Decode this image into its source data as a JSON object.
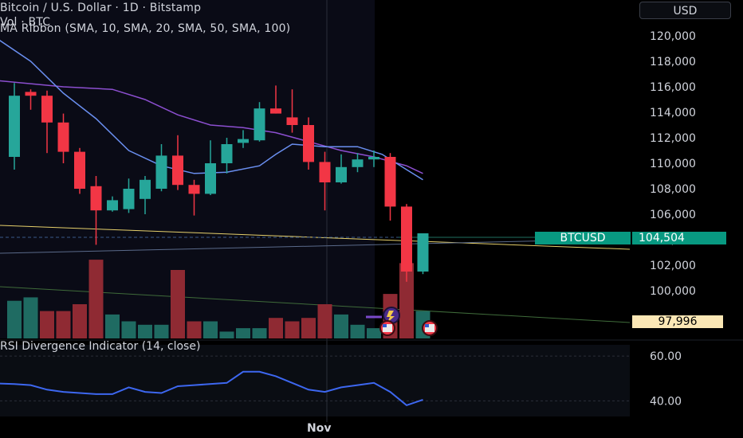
{
  "header": {
    "title": "Bitcoin / U.S. Dollar · 1D · Bitstamp",
    "volume_label": "Vol · BTC",
    "ma_ribbon_label": "MA Ribbon (SMA, 10, SMA, 20, SMA, 50, SMA, 100)"
  },
  "currency_button": {
    "label": "USD"
  },
  "price_scale": {
    "ticks": [
      "120,000",
      "118,000",
      "116,000",
      "114,000",
      "112,000",
      "110,000",
      "108,000",
      "106,000",
      "104,000",
      "102,000",
      "100,000"
    ]
  },
  "tags": {
    "symbol": "BTCUSD",
    "last_price": "104,504",
    "ma_value": "97,996"
  },
  "rsi": {
    "title": "RSI Divergence Indicator (14, close)",
    "ticks": [
      "60.00",
      "40.00"
    ]
  },
  "time_axis": {
    "label": "Nov"
  },
  "colors": {
    "up": "#26a69a",
    "down": "#f23645",
    "ma_fast": "#6a8ff0",
    "ma_slow": "#8c4fd0",
    "rsi": "#3d67f0",
    "trend": "#e6d06b"
  },
  "chart_data": {
    "type": "candlestick",
    "title": "Bitcoin / U.S. Dollar · 1D · Bitstamp",
    "y_price_range": [
      99000,
      121500
    ],
    "candles": [
      {
        "o": 110500,
        "h": 116300,
        "l": 109500,
        "c": 115300
      },
      {
        "o": 115600,
        "h": 115800,
        "l": 114200,
        "c": 115300
      },
      {
        "o": 115300,
        "h": 115700,
        "l": 110800,
        "c": 113200
      },
      {
        "o": 113200,
        "h": 113900,
        "l": 110000,
        "c": 110900
      },
      {
        "o": 110900,
        "h": 111200,
        "l": 107600,
        "c": 108000
      },
      {
        "o": 108200,
        "h": 109000,
        "l": 103600,
        "c": 106300
      },
      {
        "o": 106300,
        "h": 107400,
        "l": 106200,
        "c": 107100
      },
      {
        "o": 106400,
        "h": 108800,
        "l": 106100,
        "c": 108000
      },
      {
        "o": 107200,
        "h": 109000,
        "l": 106000,
        "c": 108700
      },
      {
        "o": 108000,
        "h": 111500,
        "l": 107800,
        "c": 110600
      },
      {
        "o": 110600,
        "h": 112200,
        "l": 107900,
        "c": 108300
      },
      {
        "o": 108300,
        "h": 108700,
        "l": 105900,
        "c": 107600
      },
      {
        "o": 107600,
        "h": 111800,
        "l": 107500,
        "c": 110000
      },
      {
        "o": 110000,
        "h": 112000,
        "l": 109200,
        "c": 111500
      },
      {
        "o": 111600,
        "h": 112600,
        "l": 111200,
        "c": 111900
      },
      {
        "o": 111800,
        "h": 114800,
        "l": 111700,
        "c": 114300
      },
      {
        "o": 114300,
        "h": 116100,
        "l": 113900,
        "c": 113900
      },
      {
        "o": 113600,
        "h": 115800,
        "l": 112400,
        "c": 113000
      },
      {
        "o": 113000,
        "h": 113600,
        "l": 109500,
        "c": 110100
      },
      {
        "o": 110100,
        "h": 110900,
        "l": 106300,
        "c": 108500
      },
      {
        "o": 108500,
        "h": 110700,
        "l": 108400,
        "c": 109700
      },
      {
        "o": 109700,
        "h": 110800,
        "l": 109300,
        "c": 110300
      },
      {
        "o": 110300,
        "h": 111000,
        "l": 109700,
        "c": 110500
      },
      {
        "o": 110500,
        "h": 110800,
        "l": 105500,
        "c": 106600
      },
      {
        "o": 106600,
        "h": 106800,
        "l": 100700,
        "c": 101500
      },
      {
        "o": 101500,
        "h": 104500,
        "l": 101300,
        "c": 104504
      }
    ],
    "volume": [
      {
        "v": 11,
        "up": true
      },
      {
        "v": 12,
        "up": true
      },
      {
        "v": 8,
        "up": false
      },
      {
        "v": 8,
        "up": false
      },
      {
        "v": 10,
        "up": false
      },
      {
        "v": 23,
        "up": false
      },
      {
        "v": 7,
        "up": true
      },
      {
        "v": 5,
        "up": true
      },
      {
        "v": 4,
        "up": true
      },
      {
        "v": 4,
        "up": true
      },
      {
        "v": 20,
        "up": false
      },
      {
        "v": 5,
        "up": false
      },
      {
        "v": 5,
        "up": true
      },
      {
        "v": 2,
        "up": true
      },
      {
        "v": 3,
        "up": true
      },
      {
        "v": 3,
        "up": true
      },
      {
        "v": 6,
        "up": false
      },
      {
        "v": 5,
        "up": false
      },
      {
        "v": 6,
        "up": false
      },
      {
        "v": 10,
        "up": false
      },
      {
        "v": 7,
        "up": true
      },
      {
        "v": 4,
        "up": true
      },
      {
        "v": 3,
        "up": true
      },
      {
        "v": 13,
        "up": false
      },
      {
        "v": 22,
        "up": false
      },
      {
        "v": 8,
        "up": true
      }
    ],
    "ma_fast": [
      {
        "x": -2,
        "y": 120600
      },
      {
        "x": 1,
        "y": 118000
      },
      {
        "x": 3,
        "y": 115500
      },
      {
        "x": 5,
        "y": 113500
      },
      {
        "x": 7,
        "y": 111000
      },
      {
        "x": 9,
        "y": 109800
      },
      {
        "x": 11,
        "y": 109200
      },
      {
        "x": 13,
        "y": 109300
      },
      {
        "x": 15,
        "y": 109800
      },
      {
        "x": 16,
        "y": 110700
      },
      {
        "x": 17,
        "y": 111500
      },
      {
        "x": 19,
        "y": 111300
      },
      {
        "x": 21,
        "y": 111300
      },
      {
        "x": 22.5,
        "y": 110700
      },
      {
        "x": 24,
        "y": 109500
      },
      {
        "x": 25,
        "y": 108700
      }
    ],
    "ma_slow": [
      {
        "x": -2,
        "y": 116600
      },
      {
        "x": 3,
        "y": 116000
      },
      {
        "x": 6,
        "y": 115800
      },
      {
        "x": 8,
        "y": 115000
      },
      {
        "x": 10,
        "y": 113800
      },
      {
        "x": 12,
        "y": 113000
      },
      {
        "x": 14,
        "y": 112800
      },
      {
        "x": 16,
        "y": 112400
      },
      {
        "x": 18,
        "y": 111700
      },
      {
        "x": 20,
        "y": 111000
      },
      {
        "x": 22,
        "y": 110500
      },
      {
        "x": 24,
        "y": 109800
      },
      {
        "x": 25,
        "y": 109200
      }
    ],
    "rsi": {
      "y_range": [
        33,
        65
      ],
      "values": [
        [
          -2,
          48
        ],
        [
          0,
          47.5
        ],
        [
          1,
          47
        ],
        [
          2,
          45
        ],
        [
          3,
          44
        ],
        [
          5,
          43
        ],
        [
          6,
          43
        ],
        [
          7,
          46
        ],
        [
          8,
          44
        ],
        [
          9,
          43.5
        ],
        [
          10,
          46.5
        ],
        [
          11,
          47
        ],
        [
          13,
          48
        ],
        [
          14,
          53
        ],
        [
          15,
          53
        ],
        [
          16,
          51
        ],
        [
          17,
          48
        ],
        [
          18,
          45
        ],
        [
          19,
          44
        ],
        [
          20,
          46
        ],
        [
          21,
          47
        ],
        [
          22,
          48
        ],
        [
          23,
          44
        ],
        [
          24,
          38
        ],
        [
          25,
          40.5
        ]
      ]
    }
  }
}
